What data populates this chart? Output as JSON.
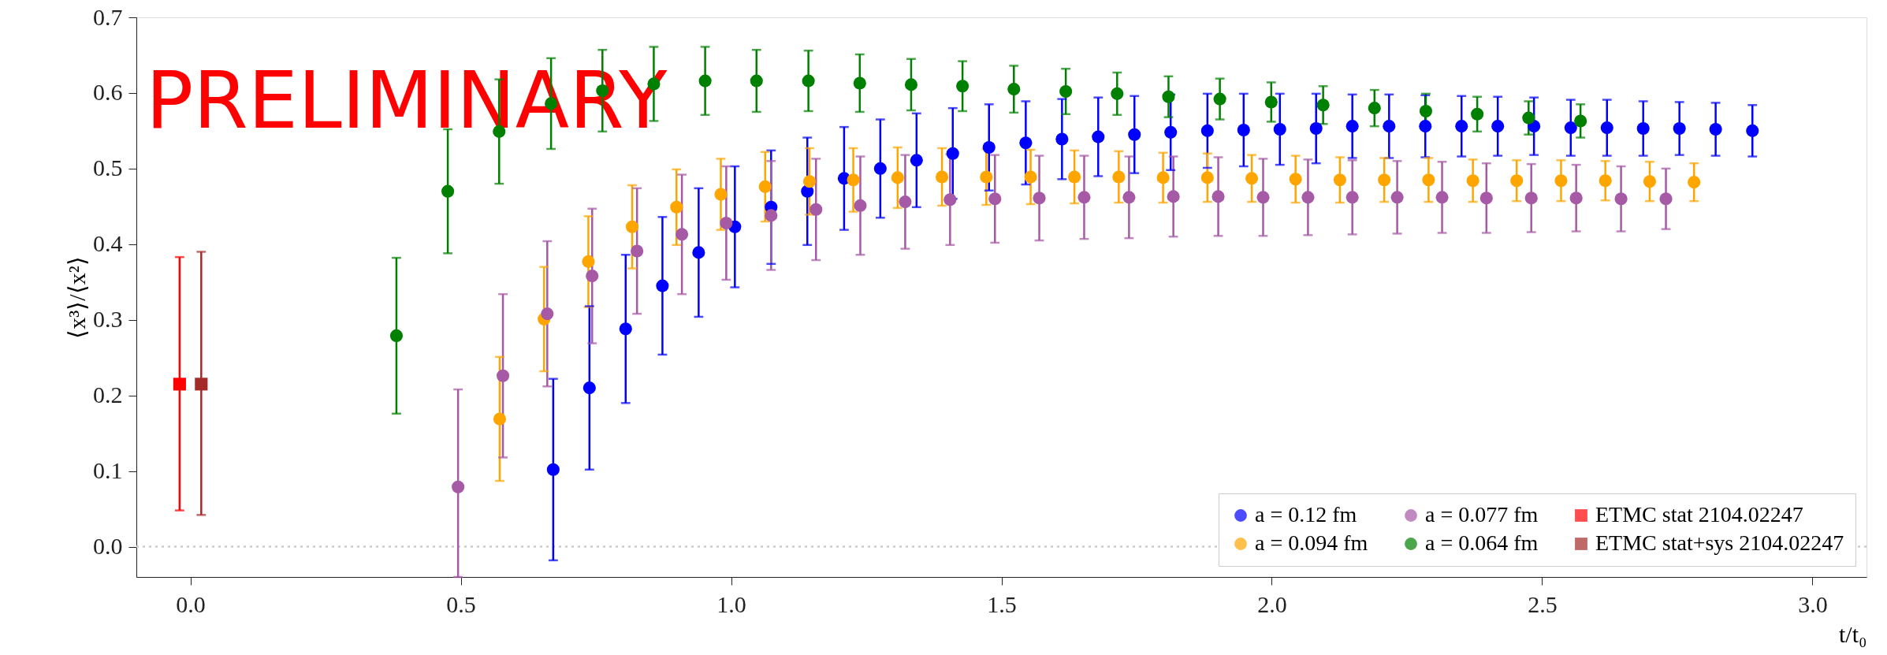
{
  "chart_data": {
    "type": "scatter",
    "xlabel": "t/t₀",
    "ylabel": "⟨x³⟩/⟨x²⟩",
    "annotations": [
      "PRELIMINARY"
    ],
    "xlim": [
      -0.1,
      3.1
    ],
    "ylim": [
      -0.04,
      0.7
    ],
    "xticks": [
      {
        "value": 0,
        "label": "0.0"
      },
      0.5,
      {
        "value": 1,
        "label": "1.0"
      },
      1.5,
      {
        "value": 2,
        "label": "2.0"
      },
      2.5,
      {
        "value": 3,
        "label": "3.0"
      }
    ],
    "yticks": [
      {
        "value": 0,
        "label": "0.0"
      },
      0.1,
      0.2,
      0.3,
      0.4,
      0.5,
      0.6,
      0.7
    ],
    "grid": false,
    "legend": "bottom right",
    "ref_lines": [
      {
        "axis": "y",
        "value": 0,
        "color": "#cccccc",
        "line_style": "dotted"
      }
    ],
    "series": [
      {
        "name": "a = 0.12 fm",
        "color": "#0000ff",
        "marker": "circle",
        "x": [
          0.671,
          0.738,
          0.805,
          0.873,
          0.94,
          1.007,
          1.074,
          1.141,
          1.209,
          1.276,
          1.343,
          1.41,
          1.477,
          1.545,
          1.612,
          1.679,
          1.746,
          1.813,
          1.881,
          1.948,
          2.015,
          2.082,
          2.149,
          2.217,
          2.284,
          2.351,
          2.418,
          2.485,
          2.553,
          2.62,
          2.687,
          2.754,
          2.821,
          2.889
        ],
        "values": [
          0.102,
          0.21,
          0.288,
          0.345,
          0.389,
          0.423,
          0.449,
          0.47,
          0.487,
          0.5,
          0.511,
          0.52,
          0.528,
          0.534,
          0.539,
          0.542,
          0.545,
          0.548,
          0.55,
          0.551,
          0.552,
          0.553,
          0.556,
          0.556,
          0.556,
          0.556,
          0.556,
          0.556,
          0.554,
          0.554,
          0.553,
          0.553,
          0.552,
          0.55
        ],
        "errors": [
          0.12,
          0.108,
          0.098,
          0.091,
          0.085,
          0.08,
          0.075,
          0.071,
          0.068,
          0.065,
          0.062,
          0.06,
          0.057,
          0.055,
          0.053,
          0.052,
          0.051,
          0.05,
          0.049,
          0.048,
          0.047,
          0.046,
          0.042,
          0.042,
          0.041,
          0.04,
          0.039,
          0.038,
          0.037,
          0.037,
          0.036,
          0.035,
          0.035,
          0.034
        ]
      },
      {
        "name": "a = 0.094 fm",
        "color": "#ffa500",
        "marker": "circle",
        "x": [
          0.572,
          0.654,
          0.736,
          0.817,
          0.899,
          0.981,
          1.063,
          1.145,
          1.226,
          1.308,
          1.39,
          1.472,
          1.554,
          1.635,
          1.717,
          1.799,
          1.881,
          1.963,
          2.044,
          2.126,
          2.208,
          2.29,
          2.372,
          2.453,
          2.535,
          2.617,
          2.699,
          2.781
        ],
        "values": [
          0.169,
          0.301,
          0.377,
          0.423,
          0.449,
          0.466,
          0.476,
          0.483,
          0.485,
          0.488,
          0.489,
          0.489,
          0.489,
          0.489,
          0.489,
          0.488,
          0.488,
          0.487,
          0.486,
          0.485,
          0.485,
          0.485,
          0.484,
          0.484,
          0.484,
          0.484,
          0.483,
          0.482
        ],
        "errors": [
          0.082,
          0.069,
          0.06,
          0.055,
          0.05,
          0.047,
          0.046,
          0.044,
          0.042,
          0.04,
          0.038,
          0.037,
          0.036,
          0.035,
          0.034,
          0.033,
          0.032,
          0.031,
          0.031,
          0.03,
          0.029,
          0.029,
          0.028,
          0.027,
          0.027,
          0.026,
          0.026,
          0.025
        ]
      },
      {
        "name": "a = 0.077 fm",
        "color": "#a65aa6",
        "marker": "circle",
        "x": [
          0.495,
          0.578,
          0.66,
          0.743,
          0.826,
          0.909,
          0.991,
          1.074,
          1.157,
          1.239,
          1.322,
          1.405,
          1.488,
          1.57,
          1.653,
          1.736,
          1.818,
          1.901,
          1.984,
          2.067,
          2.149,
          2.232,
          2.315,
          2.397,
          2.48,
          2.563,
          2.646,
          2.729
        ],
        "values": [
          0.079,
          0.226,
          0.308,
          0.358,
          0.391,
          0.413,
          0.428,
          0.438,
          0.446,
          0.451,
          0.456,
          0.459,
          0.46,
          0.461,
          0.462,
          0.462,
          0.463,
          0.463,
          0.462,
          0.462,
          0.462,
          0.462,
          0.462,
          0.461,
          0.461,
          0.461,
          0.46,
          0.46
        ],
        "errors": [
          [
            -0.04,
            0.208
          ],
          0.108,
          0.096,
          0.089,
          0.083,
          0.079,
          0.075,
          0.072,
          0.067,
          0.065,
          0.062,
          0.06,
          0.058,
          0.056,
          0.055,
          0.054,
          0.053,
          0.052,
          0.051,
          0.05,
          0.049,
          0.048,
          0.047,
          0.046,
          0.045,
          0.044,
          0.043,
          0.04
        ]
      },
      {
        "name": "a = 0.064 fm",
        "color": "#008000",
        "marker": "circle",
        "x": [
          0.381,
          0.476,
          0.571,
          0.667,
          0.762,
          0.857,
          0.952,
          1.047,
          1.143,
          1.238,
          1.333,
          1.428,
          1.523,
          1.619,
          1.714,
          1.809,
          1.904,
          1.999,
          2.095,
          2.19,
          2.285,
          2.38,
          2.475,
          2.571
        ],
        "values": [
          0.279,
          0.47,
          0.549,
          0.586,
          0.603,
          0.612,
          0.616,
          0.616,
          0.616,
          0.613,
          0.611,
          0.609,
          0.605,
          0.602,
          0.599,
          0.595,
          0.592,
          0.588,
          0.584,
          0.58,
          0.576,
          0.572,
          0.567,
          0.563
        ],
        "errors": [
          0.103,
          0.082,
          0.069,
          0.06,
          0.054,
          0.049,
          0.045,
          0.041,
          0.04,
          0.038,
          0.034,
          0.033,
          0.031,
          0.03,
          0.028,
          0.027,
          0.027,
          0.026,
          0.025,
          0.024,
          0.023,
          0.023,
          0.022,
          0.022
        ]
      },
      {
        "name": "ETMC stat 2104.02247",
        "color": "#ff0000",
        "marker": "square",
        "x": [
          -0.02
        ],
        "values": [
          0.215
        ],
        "errors": [
          [
            0.048,
            0.383
          ]
        ]
      },
      {
        "name": "ETMC stat+sys 2104.02247",
        "color": "#a52a2a",
        "marker": "square",
        "x": [
          0.02
        ],
        "values": [
          0.215
        ],
        "errors": [
          [
            0.042,
            0.39
          ]
        ]
      }
    ]
  }
}
